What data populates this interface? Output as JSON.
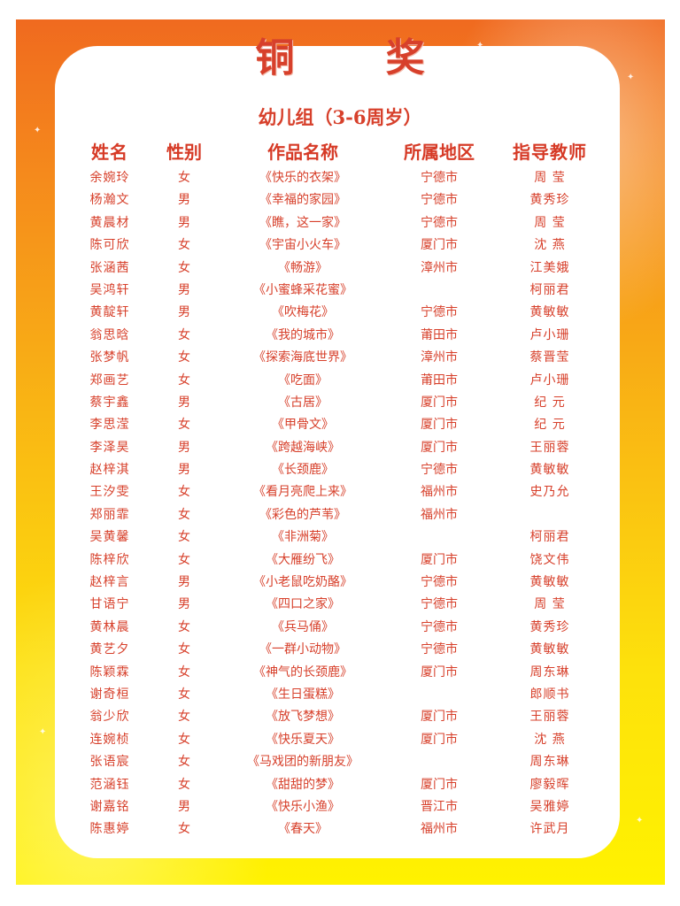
{
  "title": "铜 奖",
  "subtitle": "幼儿组（3-6周岁）",
  "columns": {
    "name": "姓名",
    "gender": "性别",
    "work": "作品名称",
    "region": "所属地区",
    "teacher": "指导教师"
  },
  "rows": [
    {
      "name": "余婉玲",
      "gender": "女",
      "work": "《快乐的衣架》",
      "region": "宁德市",
      "teacher": "周 莹"
    },
    {
      "name": "杨瀚文",
      "gender": "男",
      "work": "《幸福的家园》",
      "region": "宁德市",
      "teacher": "黄秀珍"
    },
    {
      "name": "黄晨材",
      "gender": "男",
      "work": "《瞧，这一家》",
      "region": "宁德市",
      "teacher": "周 莹"
    },
    {
      "name": "陈可欣",
      "gender": "女",
      "work": "《宇宙小火车》",
      "region": "厦门市",
      "teacher": "沈 燕"
    },
    {
      "name": "张涵茜",
      "gender": "女",
      "work": "《畅游》",
      "region": "漳州市",
      "teacher": "江美娥"
    },
    {
      "name": "吴鸿轩",
      "gender": "男",
      "work": "《小蜜蜂采花蜜》",
      "region": "",
      "teacher": "柯丽君"
    },
    {
      "name": "黄靛轩",
      "gender": "男",
      "work": "《吹梅花》",
      "region": "宁德市",
      "teacher": "黄敏敏"
    },
    {
      "name": "翁思晗",
      "gender": "女",
      "work": "《我的城市》",
      "region": "莆田市",
      "teacher": "卢小珊"
    },
    {
      "name": "张梦帆",
      "gender": "女",
      "work": "《探索海底世界》",
      "region": "漳州市",
      "teacher": "蔡晋莹"
    },
    {
      "name": "郑画艺",
      "gender": "女",
      "work": "《吃面》",
      "region": "莆田市",
      "teacher": "卢小珊"
    },
    {
      "name": "蔡宇鑫",
      "gender": "男",
      "work": "《古居》",
      "region": "厦门市",
      "teacher": "纪 元"
    },
    {
      "name": "李思滢",
      "gender": "女",
      "work": "《甲骨文》",
      "region": "厦门市",
      "teacher": "纪 元"
    },
    {
      "name": "李泽昊",
      "gender": "男",
      "work": "《跨越海峡》",
      "region": "厦门市",
      "teacher": "王丽蓉"
    },
    {
      "name": "赵梓淇",
      "gender": "男",
      "work": "《长颈鹿》",
      "region": "宁德市",
      "teacher": "黄敏敏"
    },
    {
      "name": "王汐雯",
      "gender": "女",
      "work": "《看月亮爬上来》",
      "region": "福州市",
      "teacher": "史乃允"
    },
    {
      "name": "郑丽霏",
      "gender": "女",
      "work": "《彩色的芦苇》",
      "region": "福州市",
      "teacher": ""
    },
    {
      "name": "吴黄馨",
      "gender": "女",
      "work": "《非洲菊》",
      "region": "",
      "teacher": "柯丽君"
    },
    {
      "name": "陈梓欣",
      "gender": "女",
      "work": "《大雁纷飞》",
      "region": "厦门市",
      "teacher": "饶文伟"
    },
    {
      "name": "赵梓言",
      "gender": "男",
      "work": "《小老鼠吃奶酪》",
      "region": "宁德市",
      "teacher": "黄敏敏"
    },
    {
      "name": "甘语宁",
      "gender": "男",
      "work": "《四口之家》",
      "region": "宁德市",
      "teacher": "周 莹"
    },
    {
      "name": "黄林晨",
      "gender": "女",
      "work": "《兵马俑》",
      "region": "宁德市",
      "teacher": "黄秀珍"
    },
    {
      "name": "黄艺夕",
      "gender": "女",
      "work": "《一群小动物》",
      "region": "宁德市",
      "teacher": "黄敏敏"
    },
    {
      "name": "陈颖霖",
      "gender": "女",
      "work": "《神气的长颈鹿》",
      "region": "厦门市",
      "teacher": "周东琳"
    },
    {
      "name": "谢奇桓",
      "gender": "女",
      "work": "《生日蛋糕》",
      "region": "",
      "teacher": "郎顺书"
    },
    {
      "name": "翁少欣",
      "gender": "女",
      "work": "《放飞梦想》",
      "region": "厦门市",
      "teacher": "王丽蓉"
    },
    {
      "name": "连婉桢",
      "gender": "女",
      "work": "《快乐夏天》",
      "region": "厦门市",
      "teacher": "沈 燕"
    },
    {
      "name": "张语宸",
      "gender": "女",
      "work": "《马戏团的新朋友》",
      "region": "",
      "teacher": "周东琳"
    },
    {
      "name": "范涵钰",
      "gender": "女",
      "work": "《甜甜的梦》",
      "region": "厦门市",
      "teacher": "廖毅晖"
    },
    {
      "name": "谢嘉铭",
      "gender": "男",
      "work": "《快乐小渔》",
      "region": "晋江市",
      "teacher": "吴雅婷"
    },
    {
      "name": "陈惠婷",
      "gender": "女",
      "work": "《春天》",
      "region": "福州市",
      "teacher": "许武月"
    }
  ]
}
